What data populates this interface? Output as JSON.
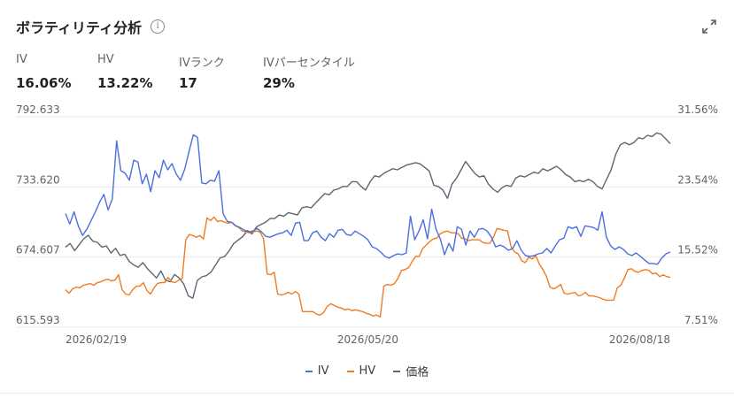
{
  "header": {
    "title": "ボラティリティ分析",
    "info_icon": "info-icon",
    "expand_icon": "expand-icon"
  },
  "stats": [
    {
      "label": "IV",
      "value": "16.06%"
    },
    {
      "label": "HV",
      "value": "13.22%"
    },
    {
      "label": "IVランク",
      "value": "17"
    },
    {
      "label": "IVパーセンタイル",
      "value": "29%"
    }
  ],
  "colors": {
    "iv": "#4b6fde",
    "hv": "#ef7c22",
    "price": "#5f6570",
    "grid": "#e8eaed",
    "axis_text": "#5f6368"
  },
  "chart_data": {
    "type": "line",
    "y_left": {
      "ticks": [
        "792.633",
        "733.620",
        "674.607",
        "615.593"
      ],
      "range": [
        615.593,
        792.633
      ]
    },
    "y_right": {
      "ticks": [
        "31.56%",
        "23.54%",
        "15.52%",
        "7.51%"
      ],
      "range": [
        7.51,
        31.56
      ]
    },
    "x_ticks": [
      "2026/02/19",
      "2026/05/20",
      "2026/08/18"
    ],
    "x_range": [
      "2026/02/19",
      "2026/08/18"
    ],
    "grid": true,
    "legend_position": "bottom",
    "series": [
      {
        "name": "IV",
        "axis": "right",
        "color": "#4b6fde",
        "values": [
          20.5,
          19.3,
          20.7,
          19.1,
          18.0,
          18.7,
          19.7,
          20.7,
          21.8,
          22.7,
          20.9,
          22.2,
          28.8,
          25.4,
          25.1,
          24.3,
          26.6,
          26.4,
          23.9,
          25.0,
          23.0,
          25.4,
          24.6,
          26.6,
          25.5,
          26.2,
          25.0,
          24.3,
          25.6,
          27.6,
          29.5,
          29.2,
          24.0,
          23.9,
          24.3,
          24.2,
          25.4,
          20.5,
          19.6,
          19.5,
          19.1,
          18.9,
          18.6,
          18.4,
          18.5,
          18.8,
          18.4,
          17.9,
          17.8,
          18.0,
          18.2,
          18.3,
          18.6,
          18.0,
          19.4,
          19.5,
          17.4,
          17.4,
          18.3,
          18.5,
          17.8,
          17.4,
          18.2,
          17.8,
          18.6,
          18.7,
          18.1,
          18.0,
          18.5,
          18.2,
          17.9,
          17.5,
          16.7,
          16.5,
          16.1,
          15.6,
          15.4,
          15.7,
          15.9,
          15.8,
          16.0,
          20.2,
          17.5,
          18.5,
          19.8,
          17.6,
          21.0,
          18.7,
          17.6,
          15.8,
          17.1,
          16.2,
          19.0,
          18.7,
          16.9,
          18.5,
          17.8,
          18.7,
          18.8,
          18.5,
          17.8,
          16.7,
          16.9,
          16.7,
          16.3,
          16.5,
          17.4,
          16.3,
          15.7,
          15.6,
          15.7,
          15.9,
          16.0,
          16.5,
          16.0,
          16.8,
          17.5,
          17.7,
          19.0,
          18.8,
          19.0,
          17.9,
          19.1,
          19.0,
          18.9,
          18.6,
          20.7,
          17.8,
          16.8,
          16.4,
          16.7,
          16.4,
          15.9,
          15.7,
          16.0,
          15.6,
          15.2,
          14.8,
          14.8,
          14.7,
          15.4,
          15.9,
          16.1
        ]
      },
      {
        "name": "HV",
        "axis": "right",
        "color": "#ef7c22",
        "values": [
          11.8,
          11.4,
          11.9,
          12.1,
          12.0,
          12.3,
          12.4,
          12.5,
          12.3,
          12.6,
          12.7,
          12.9,
          13.0,
          12.8,
          12.9,
          13.5,
          11.8,
          11.3,
          11.2,
          11.8,
          12.2,
          12.2,
          12.6,
          11.7,
          11.3,
          12.0,
          12.5,
          12.6,
          12.6,
          13.2,
          12.7,
          12.6,
          12.9,
          13.1,
          17.5,
          18.1,
          18.0,
          17.8,
          18.0,
          17.6,
          20.0,
          19.7,
          20.1,
          19.6,
          19.7,
          19.5,
          19.4,
          19.5,
          19.1,
          18.9,
          18.5,
          18.4,
          18.3,
          18.4,
          18.5,
          18.4,
          17.6,
          13.6,
          13.5,
          13.8,
          11.3,
          11.2,
          11.3,
          11.5,
          11.3,
          11.6,
          11.3,
          9.3,
          9.3,
          9.3,
          9.3,
          9.0,
          8.9,
          9.2,
          9.9,
          10.2,
          10.0,
          9.8,
          9.7,
          9.5,
          9.6,
          9.4,
          9.5,
          9.4,
          9.3,
          9.1,
          9.0,
          8.8,
          8.9,
          8.7,
          12.2,
          12.4,
          12.3,
          12.5,
          13.1,
          14.0,
          14.1,
          14.3,
          15.0,
          15.6,
          15.6,
          16.5,
          16.9,
          17.3,
          17.6,
          17.7,
          18.2,
          18.4,
          18.5,
          18.3,
          18.3,
          18.2,
          17.7,
          17.6,
          17.4,
          17.5,
          17.5,
          17.5,
          17.2,
          17.1,
          17.1,
          17.8,
          18.8,
          18.7,
          18.6,
          18.5,
          16.7,
          16.1,
          15.9,
          15.1,
          14.9,
          15.5,
          15.3,
          15.7,
          14.7,
          14.1,
          13.3,
          12.1,
          11.9,
          12.1,
          12.4,
          11.4,
          11.3,
          11.4,
          11.5,
          11.1,
          11.2,
          11.5,
          11.1,
          11.1,
          11.0,
          10.9,
          10.7,
          10.6,
          10.6,
          10.6,
          12.0,
          12.3,
          13.1,
          14.1,
          14.2,
          13.9,
          13.8,
          14.0,
          14.1,
          14.0,
          13.6,
          13.7,
          13.3,
          13.5,
          13.3,
          13.2
        ]
      },
      {
        "name": "価格",
        "axis": "left",
        "color": "#5f6570",
        "values": [
          683.0,
          686.0,
          680.0,
          685.0,
          690.0,
          693.0,
          688.0,
          687.0,
          683.0,
          684.0,
          678.0,
          682.0,
          676.0,
          677.0,
          671.0,
          668.0,
          666.0,
          670.0,
          665.0,
          661.0,
          657.0,
          663.0,
          655.0,
          654.0,
          660.0,
          657.0,
          652.0,
          642.0,
          640.0,
          655.0,
          658.0,
          659.0,
          662.0,
          668.0,
          674.0,
          675.0,
          680.0,
          686.0,
          689.0,
          692.0,
          697.0,
          694.0,
          700.0,
          702.0,
          704.0,
          707.0,
          707.0,
          710.0,
          709.0,
          712.0,
          711.0,
          710.0,
          716.0,
          717.0,
          716.0,
          720.0,
          724.0,
          728.0,
          727.0,
          731.0,
          732.0,
          734.0,
          734.0,
          738.0,
          738.0,
          734.0,
          731.0,
          738.0,
          743.0,
          742.0,
          745.0,
          747.0,
          749.0,
          748.0,
          750.0,
          752.0,
          753.0,
          754.0,
          753.0,
          750.0,
          747.0,
          735.0,
          734.0,
          731.0,
          724.0,
          736.0,
          741.0,
          748.0,
          755.0,
          750.0,
          745.0,
          742.0,
          743.0,
          736.0,
          732.0,
          729.0,
          733.0,
          735.0,
          734.0,
          741.0,
          743.0,
          742.0,
          744.0,
          746.0,
          745.0,
          749.0,
          747.0,
          749.0,
          751.0,
          748.0,
          744.0,
          742.0,
          738.0,
          739.0,
          738.0,
          740.0,
          738.0,
          734.0,
          732.0,
          740.0,
          748.0,
          761.0,
          769.0,
          771.0,
          769.0,
          771.0,
          775.0,
          774.0,
          777.0,
          776.0,
          779.0,
          778.0,
          774.0,
          770.0
        ]
      }
    ]
  },
  "legend": [
    {
      "label": "IV",
      "color": "#4b6fde"
    },
    {
      "label": "HV",
      "color": "#ef7c22"
    },
    {
      "label": "価格",
      "color": "#5f6570"
    }
  ]
}
